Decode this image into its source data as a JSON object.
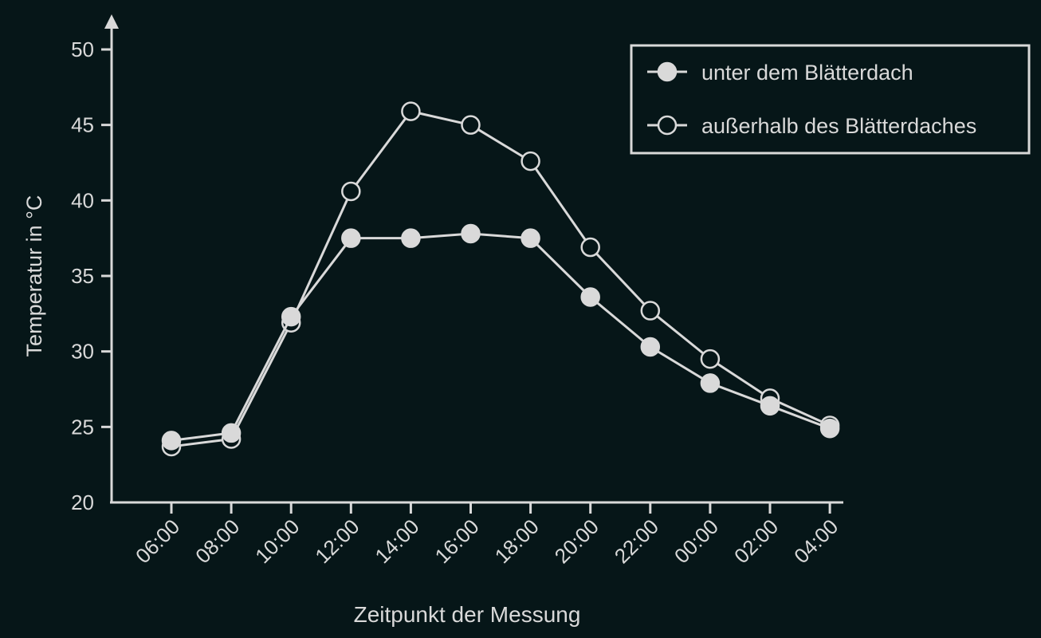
{
  "chart_data": {
    "type": "line",
    "title": "",
    "xlabel": "Zeitpunkt der Messung",
    "ylabel": "Temperatur in °C",
    "categories": [
      "06:00",
      "08:00",
      "10:00",
      "12:00",
      "14:00",
      "16:00",
      "18:00",
      "20:00",
      "22:00",
      "00:00",
      "02:00",
      "04:00"
    ],
    "ylim": [
      20,
      50
    ],
    "yticks": [
      20,
      25,
      30,
      35,
      40,
      45,
      50
    ],
    "grid": false,
    "legend_position": "top-right",
    "series": [
      {
        "name": "unter dem Blätterdach",
        "marker": "filled-circle",
        "values": [
          24.1,
          24.6,
          32.3,
          37.5,
          37.5,
          37.8,
          37.5,
          33.6,
          30.3,
          27.9,
          26.4,
          24.9
        ]
      },
      {
        "name": "außerhalb des Blätterdaches",
        "marker": "open-circle",
        "values": [
          23.7,
          24.2,
          31.9,
          40.6,
          45.9,
          45.0,
          42.6,
          36.9,
          32.7,
          29.5,
          26.9,
          25.1
        ]
      }
    ],
    "colors": {
      "background": "#061618",
      "foreground": "#d9d9d9",
      "marker_fill": "#d9d9d9",
      "open_marker_fill": "#061618"
    }
  }
}
